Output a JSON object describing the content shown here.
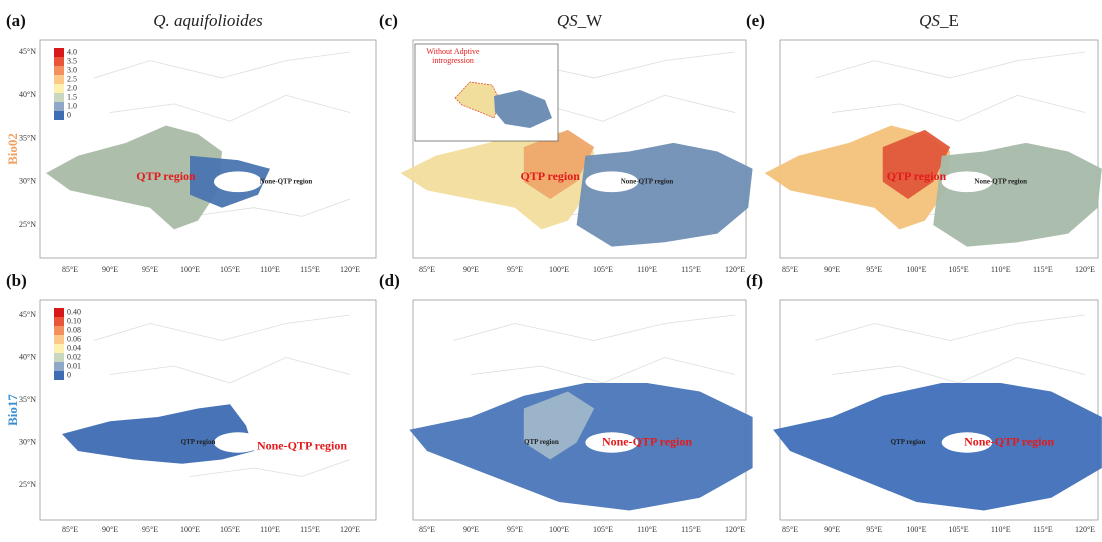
{
  "row_labels": [
    "Bio02",
    "Bio17"
  ],
  "panels": [
    {
      "label": "(a)",
      "title": [
        "Q. aquifolioides"
      ],
      "qtp": "QTP region",
      "non_qtp": "None-QTP region"
    },
    {
      "label": "(b)",
      "qtp": "QTP region",
      "non_qtp": "None-QTP region"
    },
    {
      "label": "(c)",
      "title": [
        "QS",
        "_W"
      ],
      "qtp": "QTP region",
      "non_qtp": "None-QTP region"
    },
    {
      "label": "(d)",
      "qtp": "QTP region",
      "non_qtp": "None-QTP region"
    },
    {
      "label": "(e)",
      "title": [
        "QS",
        "_E"
      ],
      "qtp": "QTP region",
      "non_qtp": "None-QTP region"
    },
    {
      "label": "(f)",
      "qtp": "QTP region",
      "non_qtp": "None-QTP region"
    }
  ],
  "legends": [
    [
      "4.0",
      "3.5",
      "3.0",
      "2.5",
      "2.0",
      "1.5",
      "1.0",
      "0"
    ],
    [
      "0.40",
      "0.10",
      "0.08",
      "0.06",
      "0.04",
      "0.02",
      "0.01",
      "0"
    ]
  ],
  "inset": [
    "Without Adptive",
    "introgression"
  ],
  "lon_ticks": [
    "85°E",
    "90°E",
    "95°E",
    "100°E",
    "105°E",
    "110°E",
    "115°E",
    "120°E"
  ],
  "lat_ticks": [
    "45°N",
    "40°N",
    "35°N",
    "30°N",
    "25°N"
  ]
}
